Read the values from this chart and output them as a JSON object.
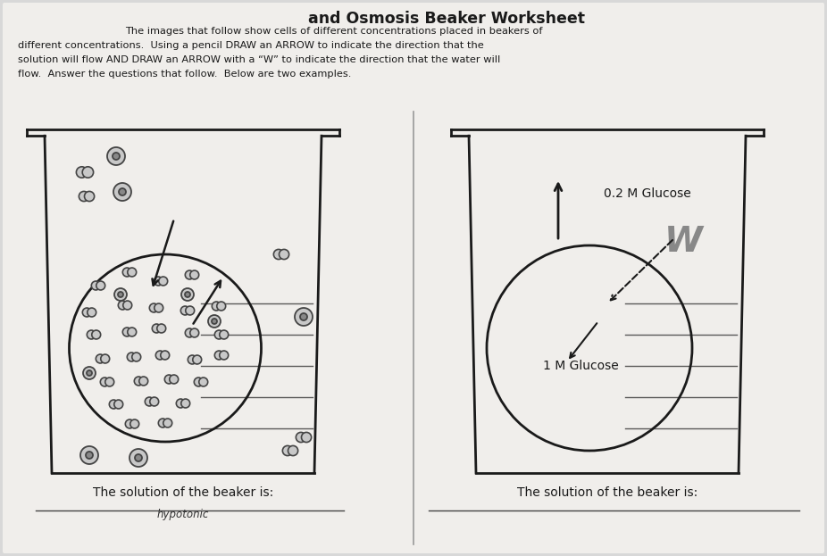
{
  "title": "and Osmosis Beaker Worksheet",
  "subtitle_lines": [
    "The images that follow show cells of different concentrations placed in beakers of",
    "different concentrations.  Using a pencil DRAW an ARROW to indicate the direction that the",
    "solution will flow AND DRAW an ARROW with a “W” to indicate the direction that the water will",
    "flow.  Answer the questions that follow.  Below are two examples."
  ],
  "beaker1_label": "The solution of the beaker is:",
  "beaker1_answer": "hypotonic",
  "beaker2_label": "The solution of the beaker is:",
  "beaker2_glucose_outer": "0.2 M Glucose",
  "beaker2_glucose_inner": "1 M Glucose",
  "bg_color": "#d8d8d8",
  "paper_color": "#f0eeeb",
  "text_color": "#1a1a1a",
  "beaker_color": "#1a1a1a",
  "particle_dark": "#555555",
  "particle_fill": "#c8c8c8",
  "line_color": "#333333",
  "divider_color": "#999999",
  "W_color": "#888888"
}
